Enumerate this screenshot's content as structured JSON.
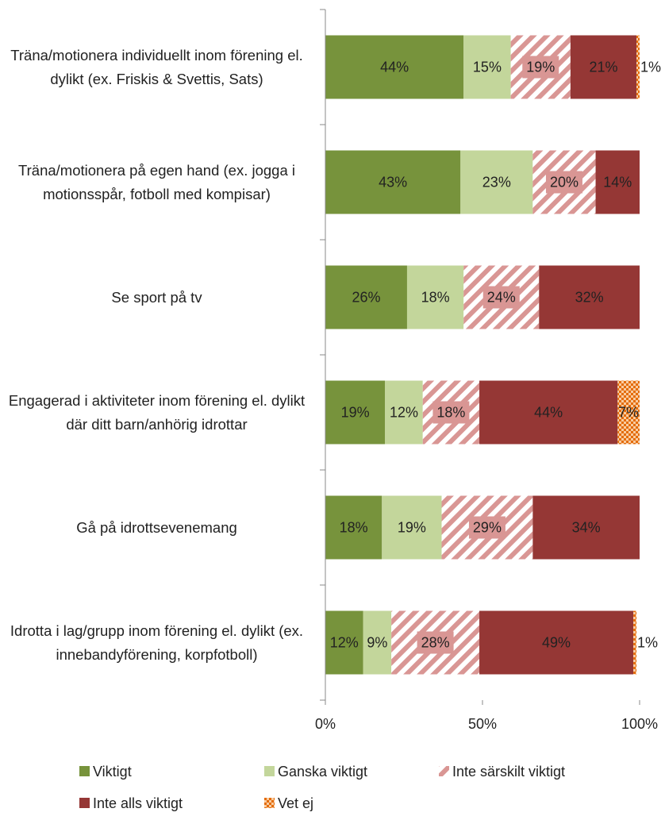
{
  "chart_data": {
    "type": "stacked-barh",
    "categories": [
      "Träna/motionera individuellt inom förening el. dylikt (ex. Friskis & Svettis, Sats)",
      "Träna/motionera på egen hand (ex. jogga i motionsspår, fotboll med kompisar)",
      "Se sport på tv",
      "Engagerad i aktiviteter inom förening el. dylikt där ditt barn/anhörig idrottar",
      "Gå på idrottsevenemang",
      "Idrotta i lag/grupp inom förening el. dylikt (ex. innebandyförening, korpfotboll)"
    ],
    "series": [
      {
        "name": "Viktigt",
        "color": "#77933c",
        "values": [
          44,
          43,
          26,
          19,
          18,
          12
        ],
        "value_labels": [
          "44%",
          "43%",
          "26%",
          "19%",
          "18%",
          "12%"
        ]
      },
      {
        "name": "Ganska viktigt",
        "color": "#c3d69b",
        "values": [
          15,
          23,
          18,
          12,
          19,
          9
        ],
        "value_labels": [
          "15%",
          "23%",
          "18%",
          "12%",
          "19%",
          "9%"
        ]
      },
      {
        "name": "Inte särskilt viktigt",
        "color": "#d99694",
        "hatch": "diagonal",
        "values": [
          19,
          20,
          24,
          18,
          29,
          28
        ],
        "value_labels": [
          "19%",
          "20%",
          "24%",
          "18%",
          "29%",
          "28%"
        ]
      },
      {
        "name": "Inte alls viktigt",
        "color": "#953735",
        "values": [
          21,
          14,
          32,
          44,
          34,
          49
        ],
        "value_labels": [
          "21%",
          "14%",
          "32%",
          "44%",
          "34%",
          "49%"
        ]
      },
      {
        "name": "Vet ej",
        "color": "#e46c0a",
        "hatch": "checker",
        "values": [
          1,
          null,
          null,
          7,
          null,
          1
        ],
        "value_labels": [
          "1%",
          null,
          null,
          "7%",
          null,
          "1%"
        ]
      }
    ],
    "xlim": [
      0,
      100
    ],
    "xticks": [
      {
        "value": 0,
        "label": "0%"
      },
      {
        "value": 50,
        "label": "50%"
      },
      {
        "value": 100,
        "label": "100%"
      }
    ]
  }
}
